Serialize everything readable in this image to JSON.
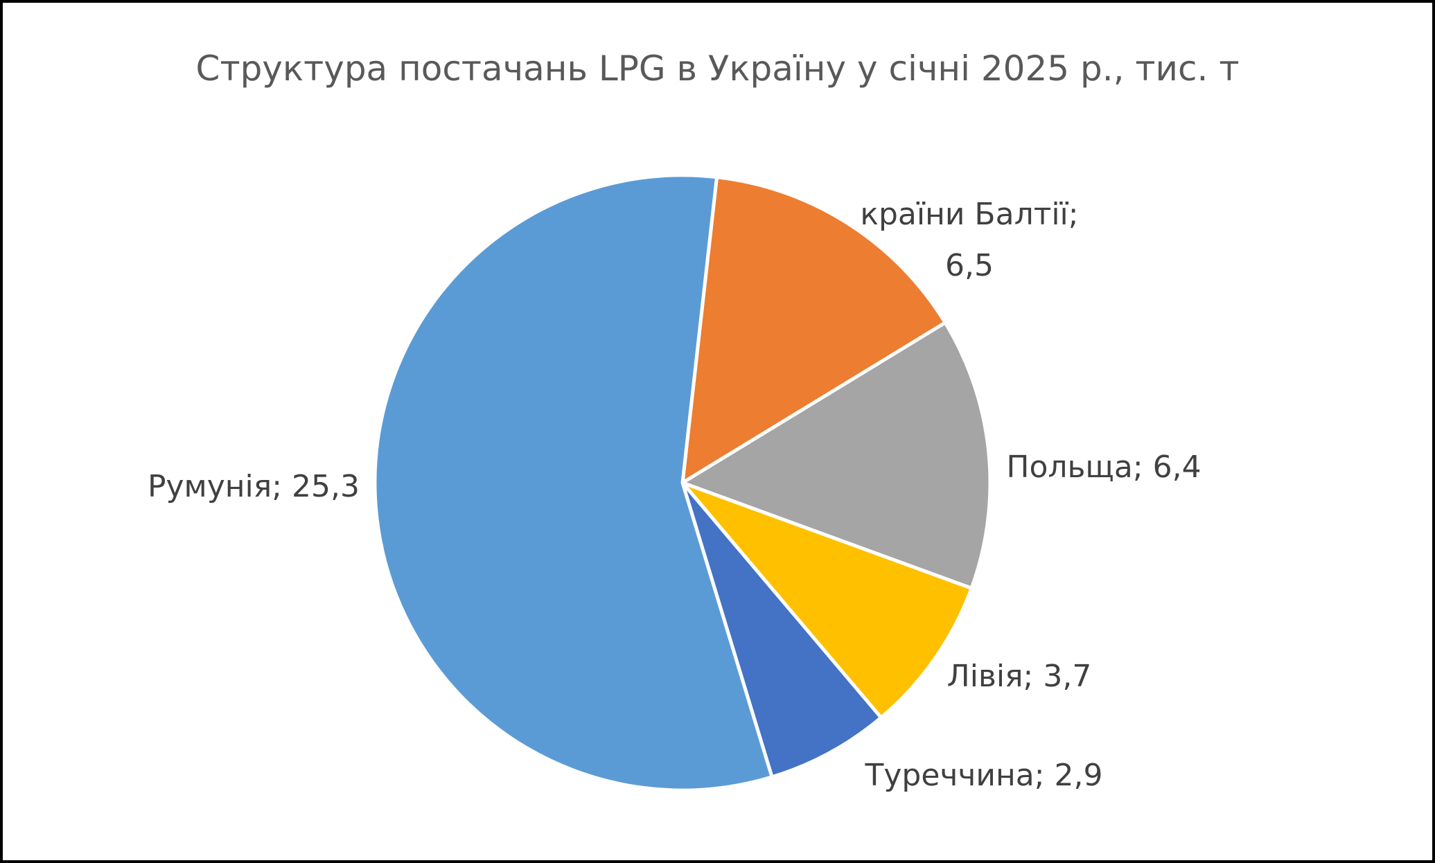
{
  "chart_data": {
    "type": "pie",
    "title": "Структура постачань LPG в Україну у січні 2025 р., тис. т",
    "categories": [
      "країни Балтії",
      "Польща",
      "Лівія",
      "Туреччина",
      "Румунія"
    ],
    "values": [
      6.5,
      6.4,
      3.7,
      2.9,
      25.3
    ],
    "value_labels": [
      "країни Балтії; 6,5",
      "Польща; 6,4",
      "Лівія; 3,7",
      "Туреччина; 2,9",
      "Румунія; 25,3"
    ],
    "colors": [
      "#ED7D31",
      "#A5A5A5",
      "#FFC000",
      "#4472C4",
      "#5B9BD5"
    ]
  }
}
